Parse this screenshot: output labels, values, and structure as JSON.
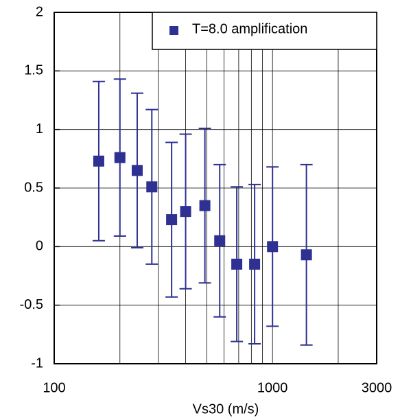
{
  "chart_data": {
    "type": "errorbar",
    "series": [
      {
        "name": "T=8.0 amplification",
        "color": "#2e3192",
        "x": [
          160,
          200,
          240,
          280,
          345,
          400,
          490,
          573,
          686,
          828,
          1000,
          1430
        ],
        "values": [
          0.73,
          0.76,
          0.65,
          0.51,
          0.23,
          0.3,
          0.35,
          0.05,
          -0.15,
          -0.15,
          0.0,
          -0.07
        ],
        "errors": [
          0.68,
          0.67,
          0.66,
          0.66,
          0.66,
          0.66,
          0.66,
          0.65,
          0.66,
          0.68,
          0.68,
          0.77
        ]
      }
    ],
    "xlabel": "Vs30 (m/s)",
    "xscale": "log",
    "xlim": [
      100,
      3000
    ],
    "xticks": [
      100,
      1000,
      3000
    ],
    "xgrid_minor": [
      200,
      300,
      400,
      500,
      600,
      700,
      800,
      900,
      2000
    ],
    "ylim": [
      -1,
      2
    ],
    "yticks": [
      -1,
      -0.5,
      0,
      0.5,
      1,
      1.5,
      2
    ],
    "grid": true,
    "legend": "upper right"
  }
}
